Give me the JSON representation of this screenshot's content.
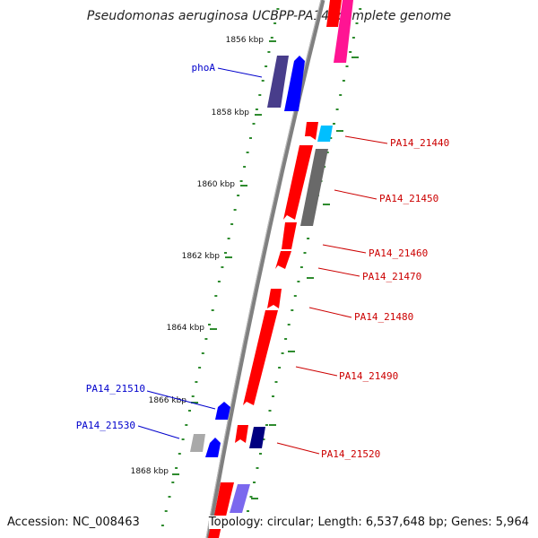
{
  "title": "Pseudomonas aeruginosa UCBPP-PA14, complete genome",
  "footer": {
    "accession": "Accession: NC_008463",
    "summary": "Topology: circular; Length: 6,537,648 bp; Genes: 5,964"
  },
  "scale_ticks": [
    "1856 kbp",
    "1858 kbp",
    "1860 kbp",
    "1862 kbp",
    "1864 kbp",
    "1866 kbp",
    "1868 kbp"
  ],
  "colors": {
    "backbone": "#808080",
    "tick": "#2e8b2e",
    "forward_label": "#0000cc",
    "reverse_label": "#cc0000",
    "red_gene": "#ff0000",
    "blue_gene": "#0000ff",
    "navy_gene": "#000080",
    "indigo_gene": "#483d8b",
    "grey_gene": "#696969",
    "cyan_gene": "#00bfff",
    "pink_gene": "#ff1493"
  },
  "labels": [
    {
      "text": "phoA",
      "side": "left"
    },
    {
      "text": "PA14_21440",
      "side": "right"
    },
    {
      "text": "PA14_21450",
      "side": "right"
    },
    {
      "text": "PA14_21460",
      "side": "right"
    },
    {
      "text": "PA14_21470",
      "side": "right"
    },
    {
      "text": "PA14_21480",
      "side": "right"
    },
    {
      "text": "PA14_21490",
      "side": "right"
    },
    {
      "text": "PA14_21510",
      "side": "left"
    },
    {
      "text": "PA14_21530",
      "side": "left"
    },
    {
      "text": "PA14_21520",
      "side": "right"
    }
  ]
}
